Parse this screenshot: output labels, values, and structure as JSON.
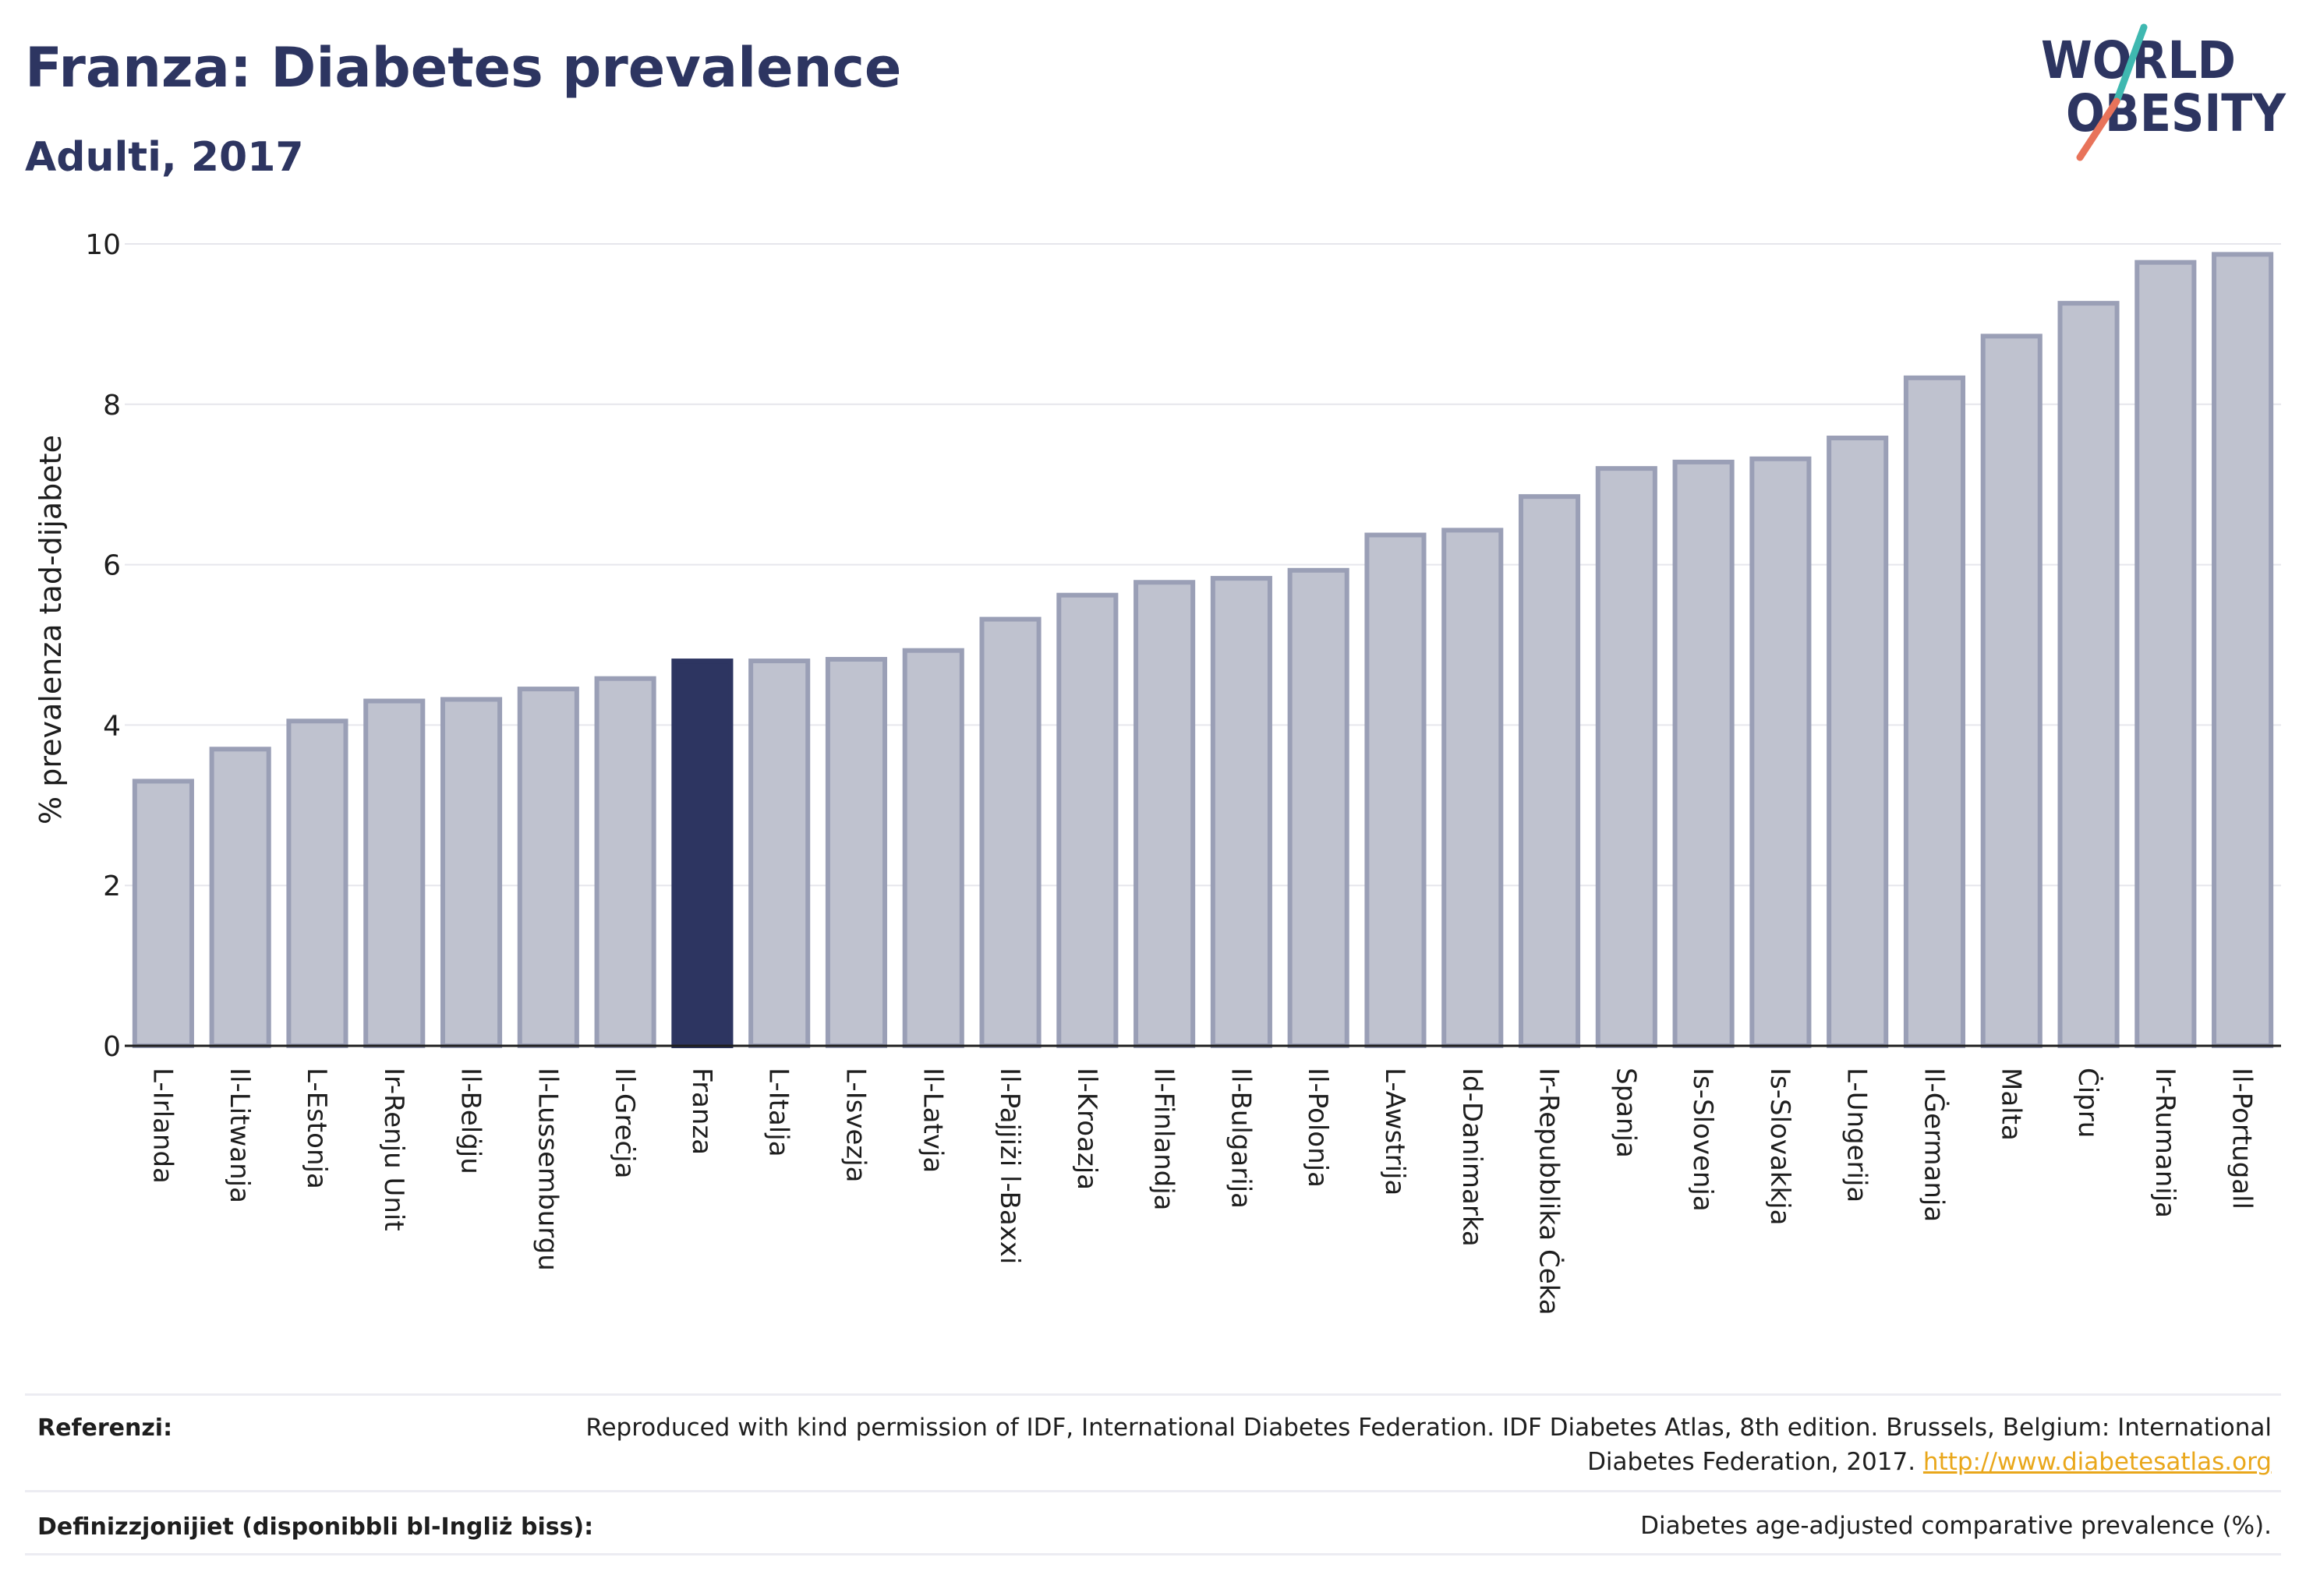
{
  "title": "Franza: Diabetes prevalence",
  "subtitle": "Adulti, 2017",
  "logo": {
    "line1": "WORLD",
    "line2": "OBESITY"
  },
  "colors": {
    "title": "#2d3561",
    "bar": "#bfc2cf",
    "bar_border": "#9a9fb6",
    "bar_highlight": "#2d3561",
    "link": "#e9a71b"
  },
  "chart_data": {
    "type": "bar",
    "ylabel": "% prevalenza tad-dijabete",
    "xlabel": "",
    "ylim": [
      0,
      10
    ],
    "yticks": [
      0,
      2,
      4,
      6,
      8,
      10
    ],
    "grid": true,
    "highlight": "Franza",
    "categories": [
      "L-Irlanda",
      "Il-Litwanja",
      "L-Estonja",
      "Ir-Renju Unit",
      "Il-Belġju",
      "Il-Lussemburgu",
      "Il-Greċja",
      "Franza",
      "L-Italja",
      "L-Isvezja",
      "Il-Latvja",
      "Il-Pajjiżi l-Baxxi",
      "Il-Kroazja",
      "Il-Finlandja",
      "Il-Bulgarija",
      "Il-Polonja",
      "L-Awstrija",
      "Id-Danimarka",
      "Ir-Repubblika Ċeka",
      "Spanja",
      "Is-Slovenja",
      "Is-Slovakkja",
      "L-Ungerija",
      "Il-Ġermanja",
      "Malta",
      "Ċipru",
      "Ir-Rumanija",
      "Il-Portugall"
    ],
    "values": [
      3.3,
      3.7,
      4.05,
      4.3,
      4.32,
      4.45,
      4.58,
      4.8,
      4.8,
      4.82,
      4.93,
      5.32,
      5.62,
      5.78,
      5.83,
      5.93,
      6.37,
      6.43,
      6.85,
      7.2,
      7.28,
      7.32,
      7.58,
      8.33,
      8.85,
      9.26,
      9.77,
      9.87
    ]
  },
  "footer": {
    "references_label": "Referenzi:",
    "references_text": "Reproduced with kind permission of IDF, International Diabetes Federation. IDF Diabetes Atlas, 8th edition. Brussels, Belgium: International Diabetes Federation, 2017.",
    "references_link": "http://www.diabetesatlas.org",
    "definitions_label": "Definizzjonijiet (disponibbli bl-Ingliż biss):",
    "definitions_text": "Diabetes age-adjusted comparative prevalence (%)."
  }
}
